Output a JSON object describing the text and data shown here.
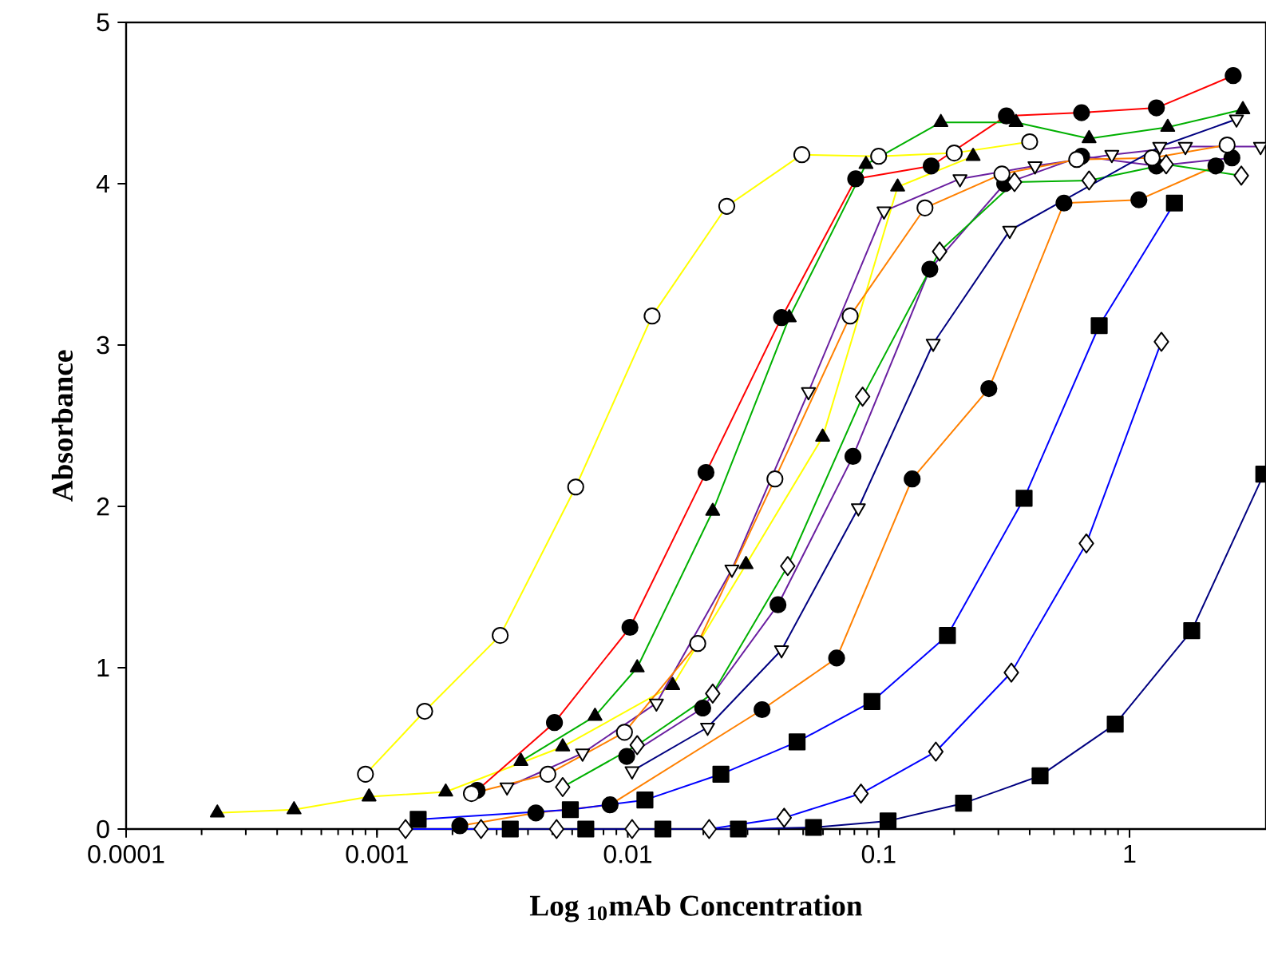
{
  "chart_data": {
    "type": "line",
    "xlabel": "Log $_{10}$mAb Concentration",
    "ylabel": "Absorbance",
    "log": "x",
    "xlim": [
      0.0001,
      3.5
    ],
    "ylim": [
      0,
      5
    ],
    "xticks": [
      0.0001,
      0.001,
      0.01,
      0.1,
      1
    ],
    "yticks": [
      0,
      1,
      2,
      3,
      4,
      5
    ],
    "line_style": "solid",
    "series": [
      {
        "color": "#ffff00",
        "marker": "circle-open",
        "x": [
          0.0009,
          0.00155,
          0.0031,
          0.0062,
          0.0125,
          0.0248,
          0.0494,
          0.1,
          0.2,
          0.4
        ],
        "values": [
          0.34,
          0.73,
          1.2,
          2.12,
          3.18,
          3.86,
          4.18,
          4.17,
          4.19,
          4.26
        ]
      },
      {
        "color": "#ffff00",
        "marker": "triangle",
        "x": [
          0.000231,
          0.000467,
          0.00093,
          0.00188,
          0.0055,
          0.0151,
          0.0296,
          0.0598,
          0.119,
          0.238
        ],
        "values": [
          0.1,
          0.12,
          0.2,
          0.23,
          0.51,
          0.89,
          1.64,
          2.43,
          3.98,
          4.17
        ]
      },
      {
        "color": "#ff0000",
        "marker": "circle",
        "x": [
          0.00251,
          0.0051,
          0.0102,
          0.0205,
          0.041,
          0.081,
          0.162,
          0.323,
          0.644,
          1.28,
          2.59
        ],
        "values": [
          0.24,
          0.66,
          1.25,
          2.21,
          3.17,
          4.03,
          4.11,
          4.42,
          4.44,
          4.47,
          4.67
        ]
      },
      {
        "color": "#00b000",
        "marker": "triangle",
        "x": [
          0.00375,
          0.0074,
          0.0109,
          0.0218,
          0.044,
          0.089,
          0.177,
          0.353,
          0.69,
          1.42,
          2.83
        ],
        "values": [
          0.42,
          0.7,
          1.0,
          1.97,
          3.17,
          4.12,
          4.38,
          4.38,
          4.28,
          4.35,
          4.46
        ]
      },
      {
        "color": "#6a1fa0",
        "marker": "triangle-down",
        "x": [
          0.0033,
          0.0066,
          0.013,
          0.026,
          0.0525,
          0.105,
          0.211,
          0.42,
          0.85,
          1.67,
          3.33
        ],
        "values": [
          0.26,
          0.47,
          0.78,
          1.61,
          2.71,
          3.83,
          4.03,
          4.11,
          4.18,
          4.23,
          4.23
        ]
      },
      {
        "color": "#6a1fa0",
        "marker": "circle",
        "x": [
          0.0099,
          0.0199,
          0.0397,
          0.079,
          0.16,
          0.318,
          0.644,
          1.28,
          2.56
        ],
        "values": [
          0.45,
          0.75,
          1.39,
          2.31,
          3.47,
          4.0,
          4.17,
          4.11,
          4.16
        ]
      },
      {
        "color": "#ff8000",
        "marker": "circle-open",
        "x": [
          0.00238,
          0.0048,
          0.0097,
          0.019,
          0.0386,
          0.077,
          0.153,
          0.31,
          0.616,
          1.23,
          2.45
        ],
        "values": [
          0.22,
          0.34,
          0.6,
          1.15,
          2.17,
          3.18,
          3.85,
          4.06,
          4.15,
          4.16,
          4.24
        ]
      },
      {
        "color": "#ff8000",
        "marker": "circle",
        "x": [
          0.00214,
          0.0043,
          0.0085,
          0.0343,
          0.068,
          0.136,
          0.275,
          0.548,
          1.09,
          2.21
        ],
        "values": [
          0.02,
          0.1,
          0.15,
          0.74,
          1.06,
          2.17,
          2.73,
          3.88,
          3.9,
          4.11
        ]
      },
      {
        "color": "#00b000",
        "marker": "diamond",
        "x": [
          0.0055,
          0.0109,
          0.0218,
          0.0434,
          0.0863,
          0.175,
          0.348,
          0.69,
          1.4,
          2.79
        ],
        "values": [
          0.26,
          0.52,
          0.84,
          1.63,
          2.68,
          3.58,
          4.01,
          4.02,
          4.12,
          4.05
        ]
      },
      {
        "color": "#000080",
        "marker": "triangle-down",
        "x": [
          0.0104,
          0.0208,
          0.041,
          0.083,
          0.165,
          0.333,
          1.32,
          2.67
        ],
        "values": [
          0.36,
          0.63,
          1.11,
          1.99,
          3.01,
          3.71,
          4.23,
          4.4
        ]
      },
      {
        "color": "#0000ff",
        "marker": "square",
        "x": [
          0.00146,
          0.0059,
          0.0117,
          0.0235,
          0.0473,
          0.094,
          0.188,
          0.38,
          0.757,
          1.51
        ],
        "values": [
          0.06,
          0.12,
          0.18,
          0.34,
          0.54,
          0.79,
          1.2,
          2.05,
          3.12,
          3.88
        ]
      },
      {
        "color": "#0000ff",
        "marker": "diamond",
        "x": [
          0.0013,
          0.0026,
          0.0052,
          0.0104,
          0.0211,
          0.042,
          0.085,
          0.169,
          0.338,
          0.673,
          1.34
        ],
        "values": [
          0.0,
          0.0,
          0.0,
          0.0,
          0.0,
          0.07,
          0.22,
          0.48,
          0.97,
          1.77,
          3.02
        ]
      },
      {
        "color": "#000080",
        "marker": "square",
        "x": [
          0.0034,
          0.0068,
          0.0138,
          0.0276,
          0.055,
          0.109,
          0.218,
          0.44,
          0.877,
          1.77,
          3.43
        ],
        "values": [
          0.0,
          0.0,
          0.0,
          0.0,
          0.01,
          0.05,
          0.16,
          0.33,
          0.65,
          1.23,
          2.2
        ]
      }
    ]
  }
}
